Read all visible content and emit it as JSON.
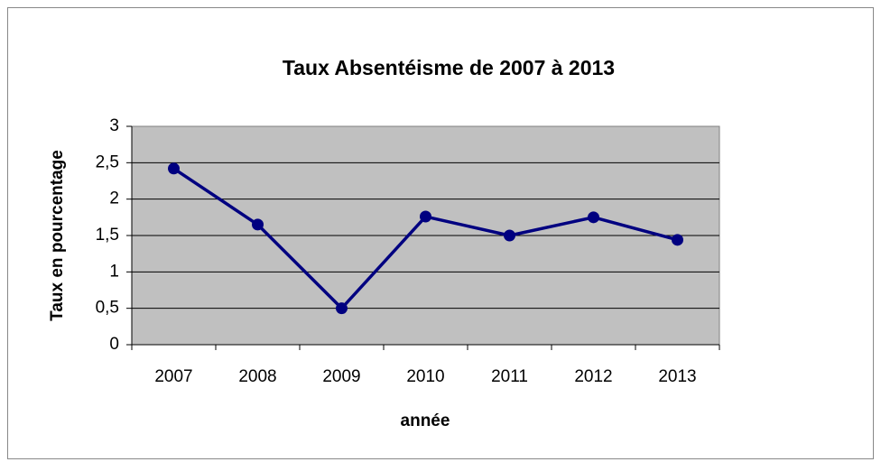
{
  "chart_data": {
    "type": "line",
    "title": "Taux Absentéisme de 2007 à 2013",
    "xlabel": "année",
    "ylabel": "Taux en pourcentage",
    "categories": [
      "2007",
      "2008",
      "2009",
      "2010",
      "2011",
      "2012",
      "2013"
    ],
    "series": [
      {
        "name": "Taux",
        "color": "#000080",
        "values": [
          2.42,
          1.65,
          0.5,
          1.76,
          1.5,
          1.75,
          1.44
        ]
      }
    ],
    "ylim": [
      0,
      3
    ],
    "yticks": [
      0,
      {
        "value": 0.5,
        "label": "0,5"
      },
      1,
      {
        "value": 1.5,
        "label": "1,5"
      },
      2,
      {
        "value": 2.5,
        "label": "2,5"
      },
      3
    ],
    "grid": true
  }
}
